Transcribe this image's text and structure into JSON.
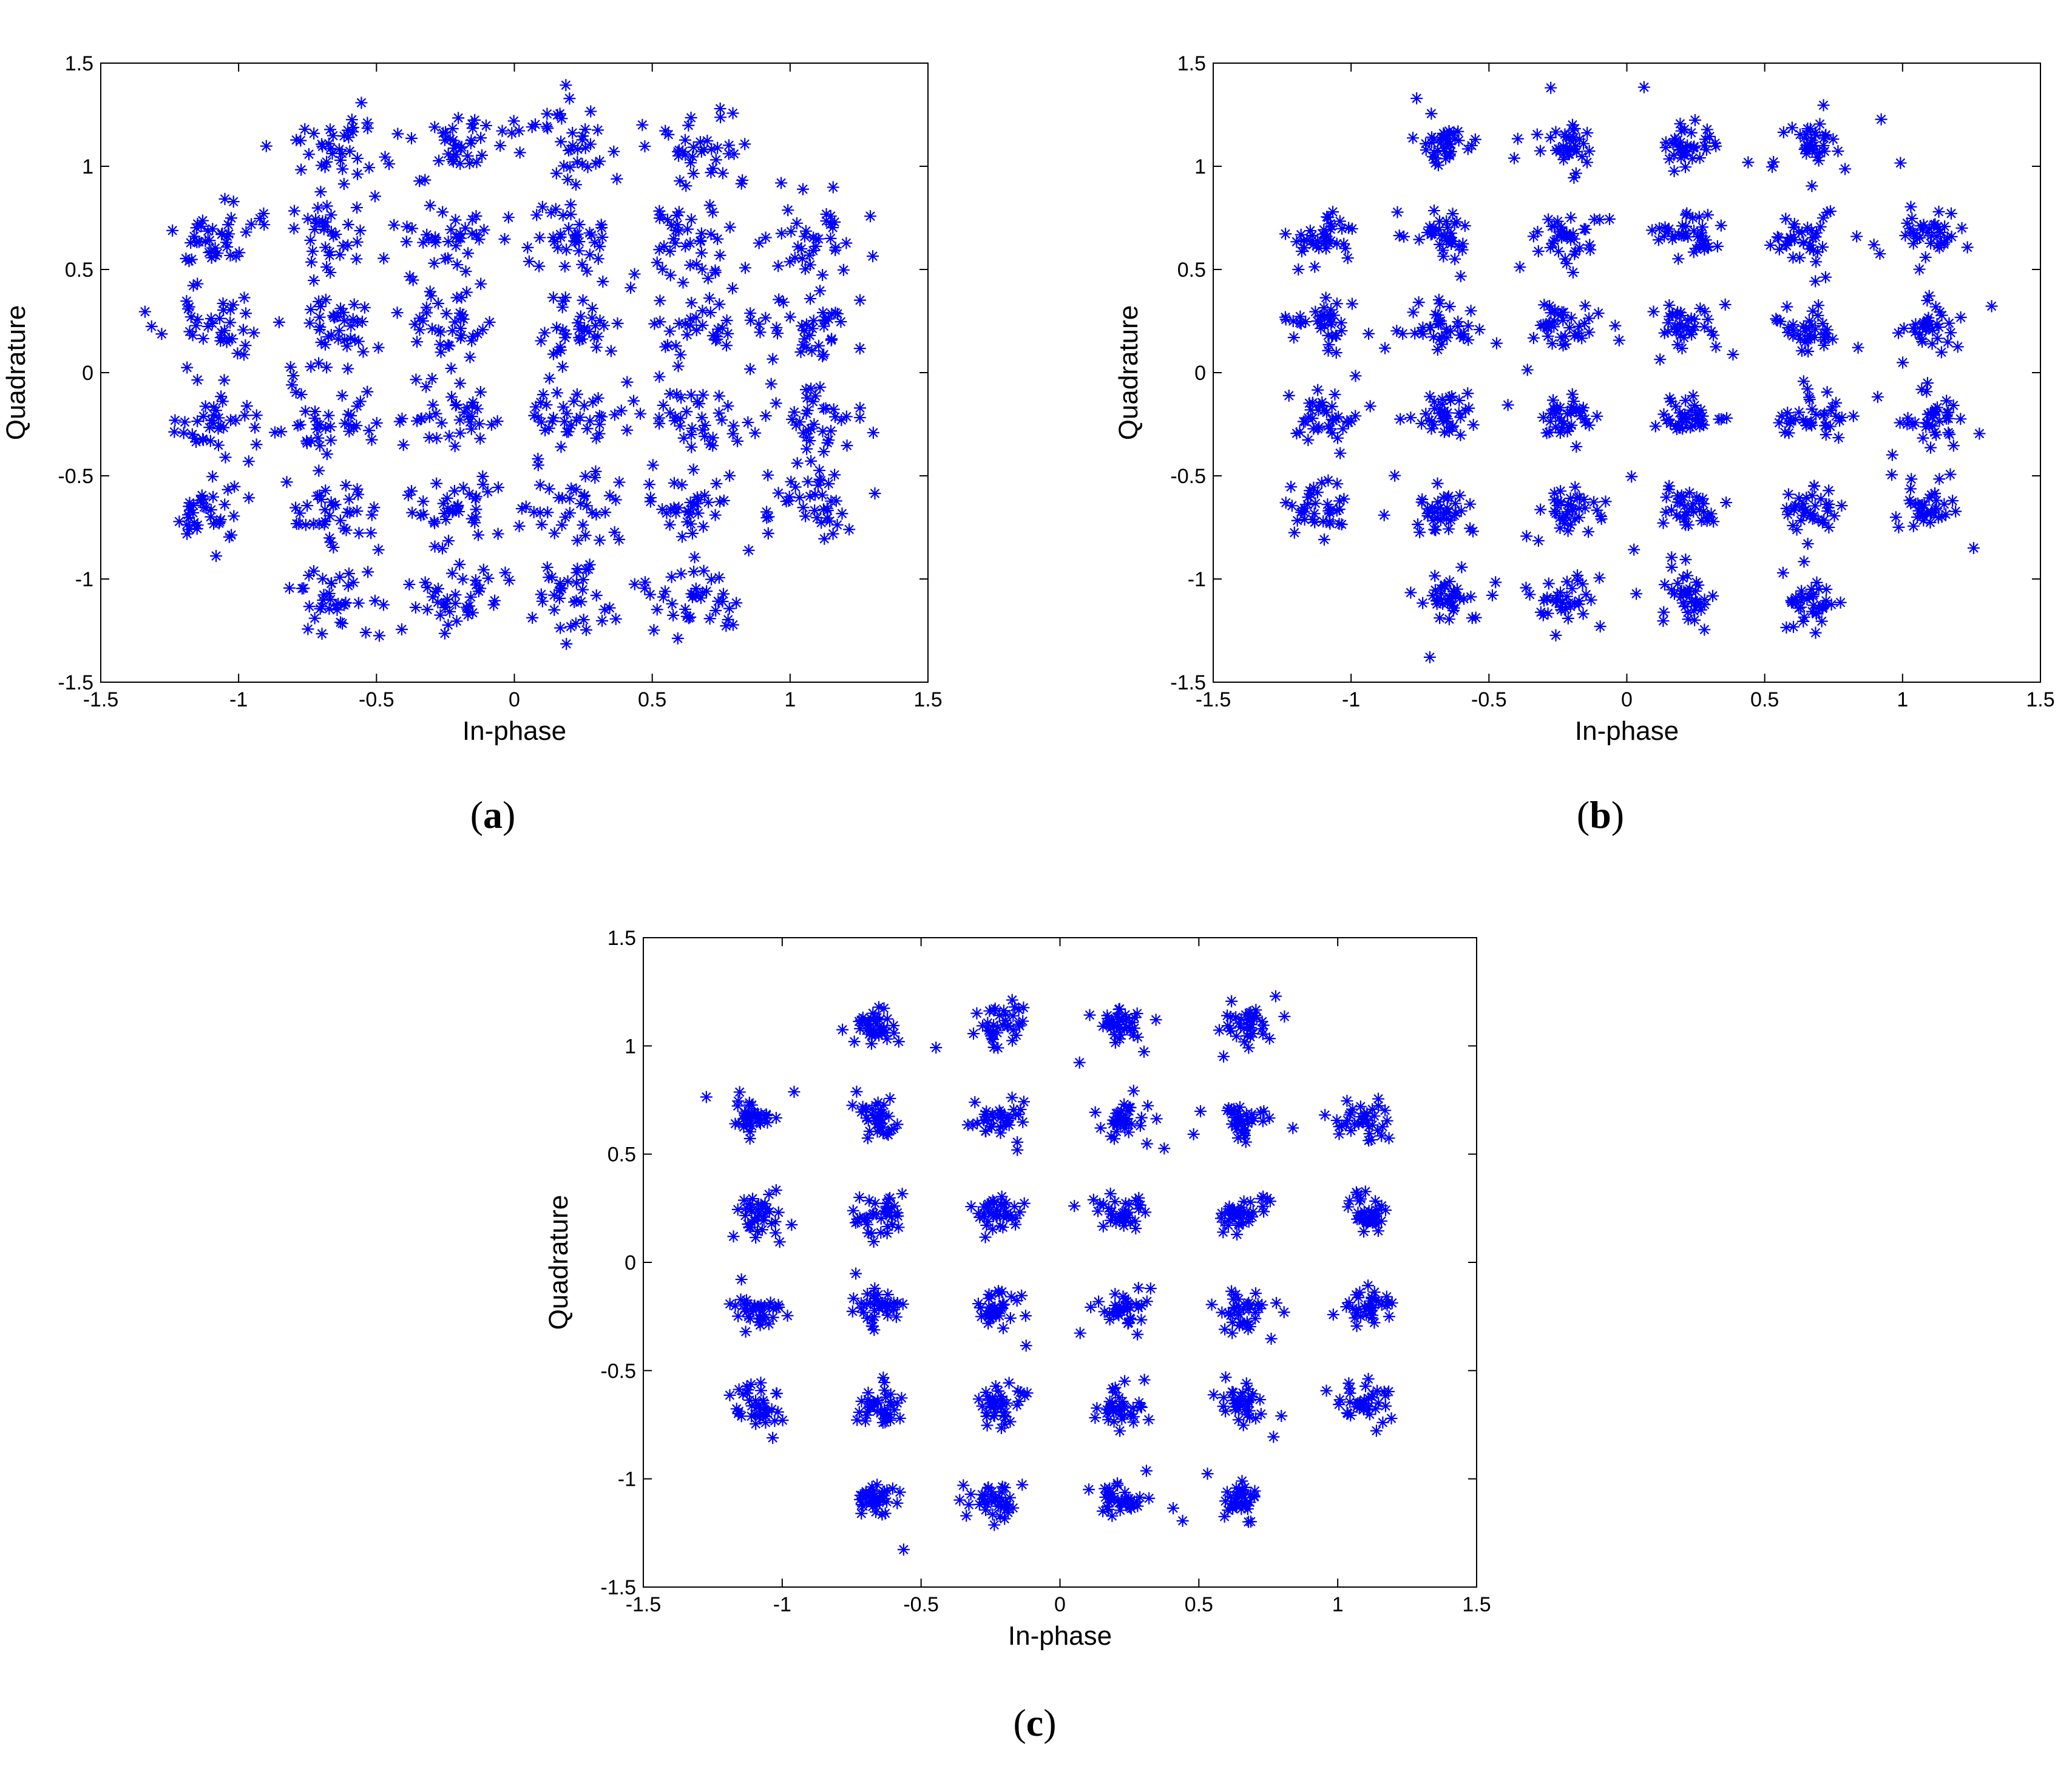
{
  "colors": {
    "marker": "#0000ff",
    "axis": "#000000",
    "background": "#ffffff"
  },
  "marker_symbol": "*",
  "chart_data": [
    {
      "id": "a",
      "type": "scatter",
      "panel_label": "a",
      "title": "",
      "xlabel": "In-phase",
      "ylabel": "Quadrature",
      "xlim": [
        -1.5,
        1.5
      ],
      "ylim": [
        -1.5,
        1.5
      ],
      "xticks": [
        "-1.5",
        "-1",
        "-0.5",
        "0",
        "0.5",
        "1",
        "1.5"
      ],
      "yticks": [
        "-1.5",
        "-1",
        "-0.5",
        "0",
        "0.5",
        "1",
        "1.5"
      ],
      "grid": false,
      "legend": "none",
      "constellation_levels": [
        -1.1,
        -0.66,
        -0.22,
        0.22,
        0.66,
        1.1
      ],
      "points_per_cluster": 38,
      "spread": 0.085,
      "outlier_spread": 0.16,
      "seed": 11
    },
    {
      "id": "b",
      "type": "scatter",
      "panel_label": "b",
      "title": "",
      "xlabel": "In-phase",
      "ylabel": "Quadrature",
      "xlim": [
        -1.5,
        1.5
      ],
      "ylim": [
        -1.5,
        1.5
      ],
      "xticks": [
        "-1.5",
        "-1",
        "-0.5",
        "0",
        "0.5",
        "1",
        "1.5"
      ],
      "yticks": [
        "-1.5",
        "-1",
        "-0.5",
        "0",
        "0.5",
        "1",
        "1.5"
      ],
      "grid": false,
      "legend": "none",
      "constellation_levels": [
        -1.1,
        -0.66,
        -0.22,
        0.22,
        0.66,
        1.1
      ],
      "points_per_cluster": 38,
      "spread": 0.055,
      "outlier_spread": 0.11,
      "seed": 23
    },
    {
      "id": "c",
      "type": "scatter",
      "panel_label": "c",
      "title": "",
      "xlabel": "In-phase",
      "ylabel": "Quadrature",
      "xlim": [
        -1.5,
        1.5
      ],
      "ylim": [
        -1.5,
        1.5
      ],
      "xticks": [
        "-1.5",
        "-1",
        "-0.5",
        "0",
        "0.5",
        "1",
        "1.5"
      ],
      "yticks": [
        "-1.5",
        "-1",
        "-0.5",
        "0",
        "0.5",
        "1",
        "1.5"
      ],
      "grid": false,
      "legend": "none",
      "constellation_levels": [
        -1.1,
        -0.66,
        -0.22,
        0.22,
        0.66,
        1.1
      ],
      "points_per_cluster": 38,
      "spread": 0.042,
      "outlier_spread": 0.085,
      "seed": 37
    }
  ]
}
